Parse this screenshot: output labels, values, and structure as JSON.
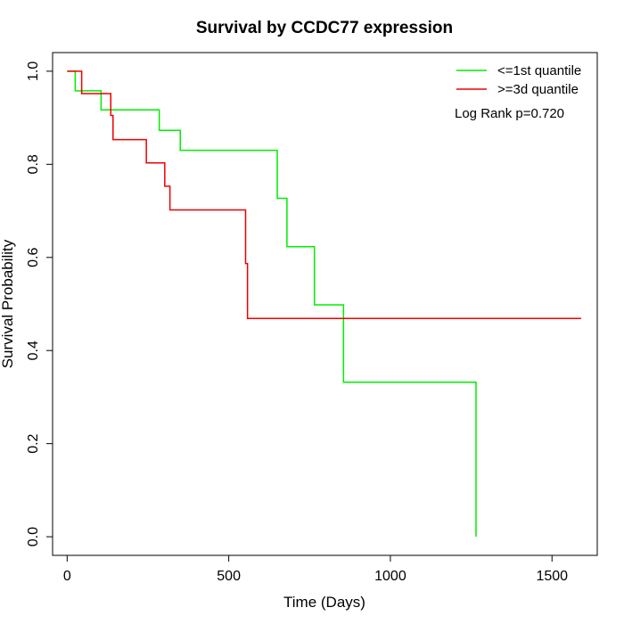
{
  "chart_data": {
    "type": "line",
    "step": true,
    "title": "Survival by CCDC77 expression",
    "xlabel": "Time (Days)",
    "ylabel": "Survival Probability",
    "xlim": [
      -45,
      1640
    ],
    "ylim": [
      -0.04,
      1.04
    ],
    "x_ticks": [
      0,
      500,
      1000,
      1500
    ],
    "x_tick_labels": [
      "0",
      "500",
      "1000",
      "1500"
    ],
    "y_ticks": [
      0.0,
      0.2,
      0.4,
      0.6,
      0.8,
      1.0
    ],
    "y_tick_labels": [
      "0.0",
      "0.2",
      "0.4",
      "0.6",
      "0.8",
      "1.0"
    ],
    "grid": false,
    "legend_position": "top-right",
    "annotation": "Log Rank p=0.720",
    "series": [
      {
        "name": "<=1st quantile",
        "color": "#00ee00",
        "points": [
          [
            0,
            1.0
          ],
          [
            25,
            0.958
          ],
          [
            105,
            0.917
          ],
          [
            285,
            0.873
          ],
          [
            350,
            0.83
          ],
          [
            650,
            0.727
          ],
          [
            680,
            0.623
          ],
          [
            765,
            0.498
          ],
          [
            855,
            0.332
          ],
          [
            1265,
            0.0
          ]
        ]
      },
      {
        "name": ">=3d quantile",
        "color": "#ee0000",
        "end_x": 1590,
        "points": [
          [
            0,
            1.0
          ],
          [
            45,
            0.952
          ],
          [
            135,
            0.905
          ],
          [
            142,
            0.853
          ],
          [
            245,
            0.803
          ],
          [
            302,
            0.753
          ],
          [
            318,
            0.702
          ],
          [
            552,
            0.587
          ],
          [
            558,
            0.469
          ]
        ]
      }
    ]
  }
}
